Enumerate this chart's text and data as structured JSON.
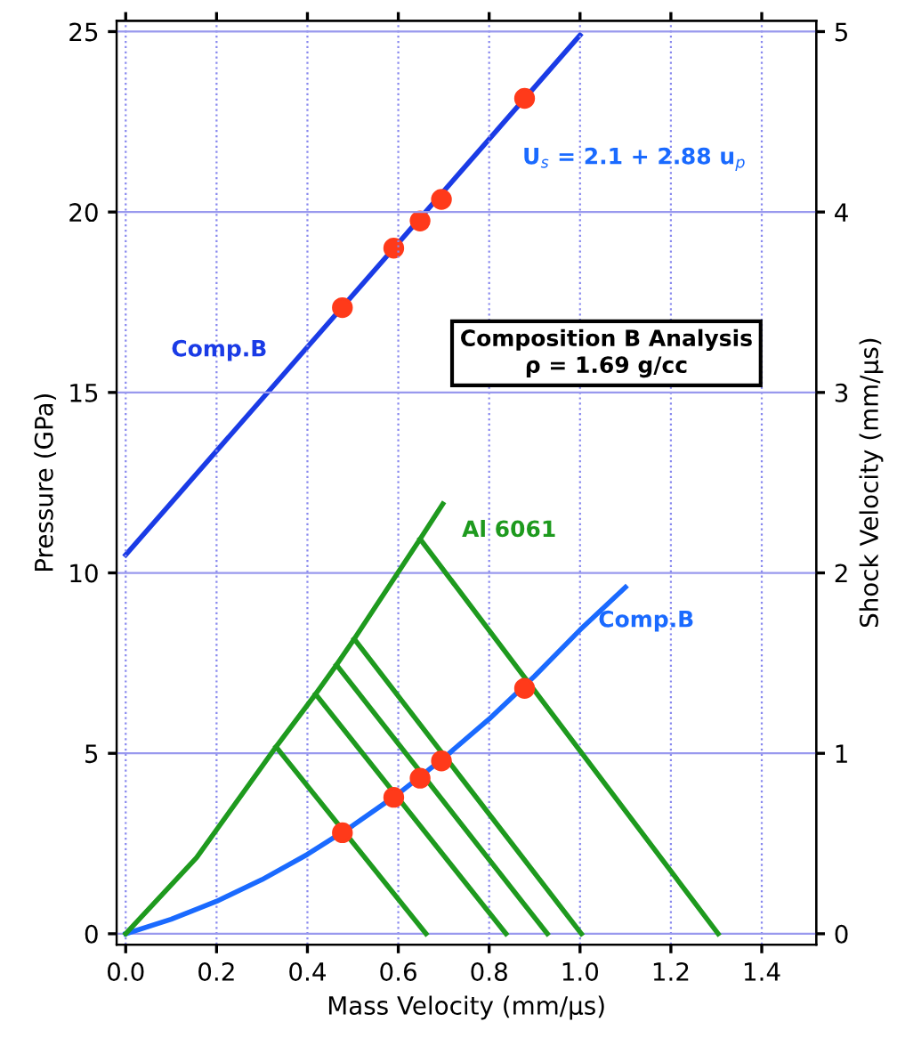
{
  "chart_data": {
    "type": "line",
    "xlabel": "Mass Velocity (mm/µs)",
    "ylabel": "Pressure (GPa)",
    "y2label": "Shock Velocity (mm/µs)",
    "xlim": [
      -0.02,
      1.52
    ],
    "xticks": [
      {
        "value": 0,
        "label": "0.0"
      },
      {
        "value": 0.2,
        "label": "0.2"
      },
      {
        "value": 0.4,
        "label": "0.4"
      },
      {
        "value": 0.6,
        "label": "0.6"
      },
      {
        "value": 0.8,
        "label": "0.8"
      },
      {
        "value": 1.0,
        "label": "1.0"
      },
      {
        "value": 1.2,
        "label": "1.2"
      },
      {
        "value": 1.4,
        "label": "1.4"
      }
    ],
    "ylim": [
      -0.3,
      25.3
    ],
    "yticks": [
      0,
      5,
      10,
      15,
      20,
      25
    ],
    "y2lim": [
      -0.06,
      5.06
    ],
    "y2ticks": [
      0,
      1,
      2,
      3,
      4,
      5
    ],
    "grid": true,
    "series": [
      {
        "name": "Comp.B",
        "axis": "y2",
        "color": "#1a3be6",
        "x": [
          0,
          1.0
        ],
        "values": [
          2.1,
          4.98
        ]
      },
      {
        "type": "scatter",
        "axis": "y2",
        "color": "#ff3a1a",
        "marker": "circle",
        "x": [
          0.477,
          0.59,
          0.648,
          0.695,
          0.878
        ],
        "values": [
          3.47,
          3.8,
          3.95,
          4.07,
          4.63
        ]
      },
      {
        "name": "Comp.B",
        "color": "#1a6aff",
        "x": [
          0,
          0.1,
          0.2,
          0.3,
          0.4,
          0.5,
          0.6,
          0.7,
          0.8,
          0.9,
          1.0,
          1.1
        ],
        "values": [
          0,
          0.4,
          0.9,
          1.5,
          2.2,
          3.0,
          3.88,
          4.87,
          5.95,
          7.14,
          8.42,
          9.6
        ]
      },
      {
        "name": "Al 6061",
        "color": "#1e9a1e",
        "x": [
          0,
          0.156,
          0.331,
          0.418,
          0.464,
          0.503,
          0.648,
          0.698
        ],
        "values": [
          0,
          2.11,
          5.18,
          6.64,
          7.45,
          8.17,
          10.94,
          11.91
        ]
      },
      {
        "color": "#1e9a1e",
        "x": [
          0.331,
          0.661
        ],
        "values": [
          5.18,
          0
        ]
      },
      {
        "color": "#1e9a1e",
        "x": [
          0.418,
          0.837
        ],
        "values": [
          6.64,
          0
        ]
      },
      {
        "color": "#1e9a1e",
        "x": [
          0.464,
          0.928
        ],
        "values": [
          7.45,
          0
        ]
      },
      {
        "color": "#1e9a1e",
        "x": [
          0.503,
          1.003
        ],
        "values": [
          8.17,
          0
        ]
      },
      {
        "color": "#1e9a1e",
        "x": [
          0.648,
          1.304
        ],
        "values": [
          10.94,
          0
        ]
      },
      {
        "type": "scatter",
        "color": "#ff3a1a",
        "marker": "circle",
        "x": [
          0.477,
          0.59,
          0.648,
          0.695,
          0.878
        ],
        "values": [
          2.8,
          3.78,
          4.31,
          4.79,
          6.8
        ]
      }
    ],
    "annotations": [
      "U$_{s}$ = 2.1 + 2.88 u$_{p}$",
      "Composition B Analysis\nρ = 1.69 g/cc"
    ]
  }
}
